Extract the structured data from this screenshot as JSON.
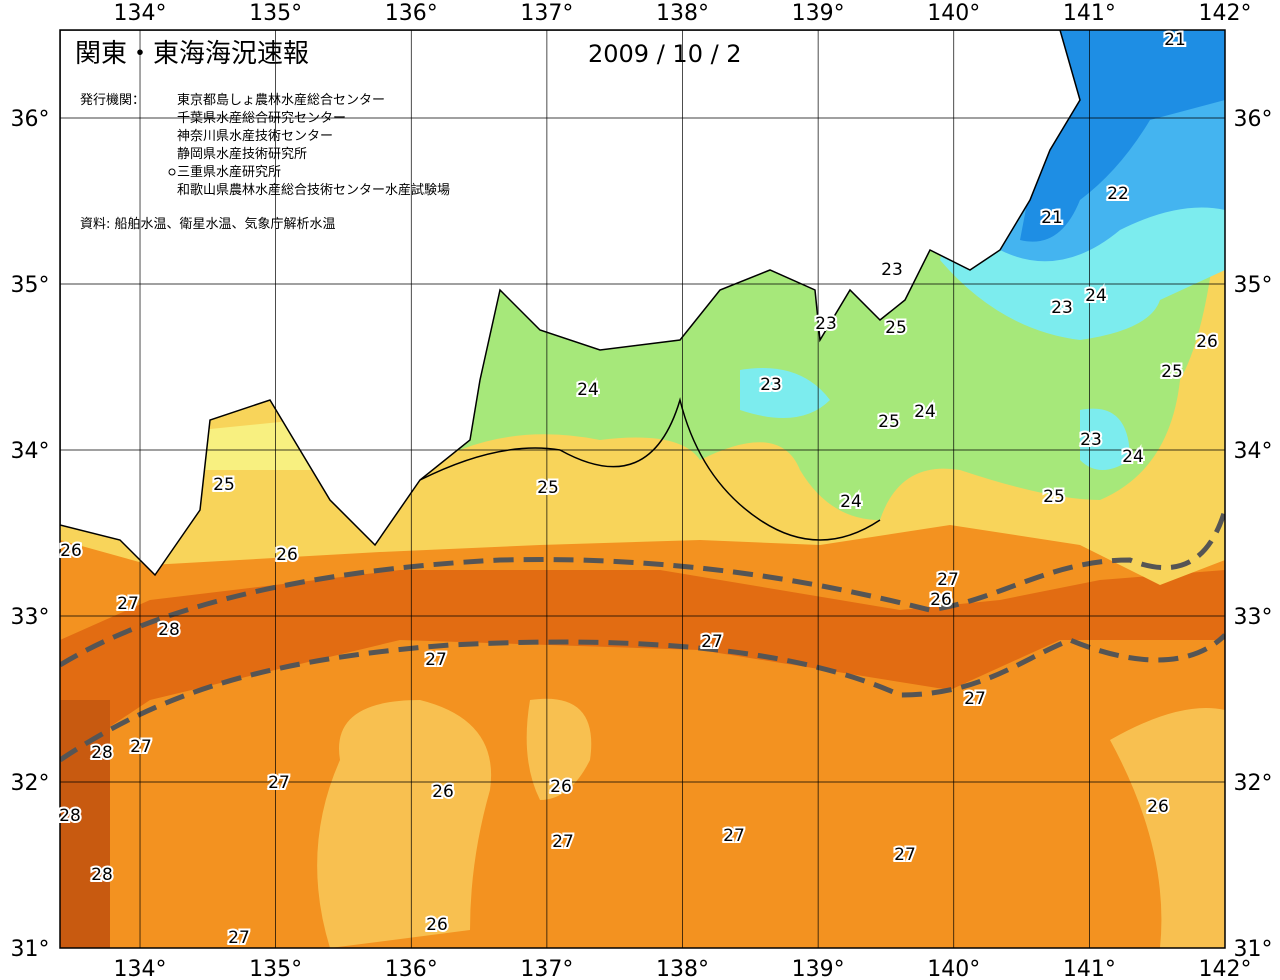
{
  "header": {
    "title": "関東・東海海況速報",
    "date": "2009 / 10 / 2",
    "issuer_label": "発行機関：",
    "issuers": [
      "東京都島しょ農林水産総合センター",
      "千葉県水産総合研究センター",
      "神奈川県水産技術センター",
      "静岡県水産技術研究所",
      "三重県水産研究所",
      "和歌山県農林水産総合技術センター水産試験場"
    ],
    "source": "資料: 船舶水温、衛星水温、気象庁解析水温"
  },
  "map": {
    "xlim": [
      133.41,
      142
    ],
    "ylim": [
      31,
      36.53
    ],
    "xticks": [
      {
        "value": 134,
        "label": "134°"
      },
      {
        "value": 135,
        "label": "135°"
      },
      {
        "value": 136,
        "label": "136°"
      },
      {
        "value": 137,
        "label": "137°"
      },
      {
        "value": 138,
        "label": "138°"
      },
      {
        "value": 139,
        "label": "139°"
      },
      {
        "value": 140,
        "label": "140°"
      },
      {
        "value": 141,
        "label": "141°"
      },
      {
        "value": 142,
        "label": "142°"
      }
    ],
    "yticks": [
      {
        "value": 31,
        "label": "31°"
      },
      {
        "value": 32,
        "label": "32°"
      },
      {
        "value": 33,
        "label": "33°"
      },
      {
        "value": 34,
        "label": "34°"
      },
      {
        "value": 35,
        "label": "35°"
      },
      {
        "value": 36,
        "label": "36°"
      }
    ],
    "contour_labels": [
      21,
      21,
      22,
      23,
      23,
      25,
      24,
      23,
      26,
      25,
      23,
      24,
      25,
      24,
      23,
      24,
      25,
      25,
      24,
      25,
      26,
      26,
      27,
      26,
      27,
      28,
      27,
      27,
      27,
      28,
      27,
      27,
      26,
      26,
      28,
      26,
      27,
      27,
      27,
      28,
      26,
      27
    ]
  }
}
